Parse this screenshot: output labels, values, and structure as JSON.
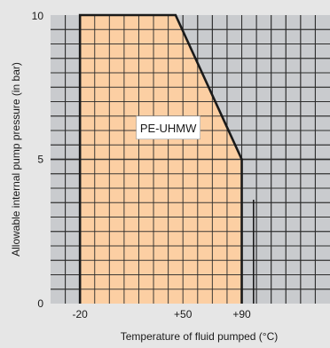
{
  "chart_data": {
    "type": "area",
    "title": "",
    "xlabel": "Temperature of fluid pumped (°C)",
    "ylabel": "Allowable internal pump pressure (in bar)",
    "xlim": [
      -40,
      150
    ],
    "ylim": [
      0,
      10
    ],
    "x_tick_values": [
      -20,
      50,
      90
    ],
    "x_tick_labels": [
      "-20",
      "+50",
      "+90"
    ],
    "y_tick_values": [
      0,
      5,
      10
    ],
    "y_tick_labels": [
      "0",
      "5",
      "10"
    ],
    "grid": true,
    "series": [
      {
        "name": "PE-UHMW",
        "points": [
          {
            "x": -20,
            "y": 0
          },
          {
            "x": -20,
            "y": 10
          },
          {
            "x": 45,
            "y": 10
          },
          {
            "x": 90,
            "y": 5
          },
          {
            "x": 90,
            "y": 0
          }
        ]
      }
    ],
    "region_label": "PE-UHMW",
    "colors": {
      "background": "#e6e6e6",
      "plot_background": "#c9cbce",
      "grid": "#2a2a2a",
      "region_fill": "#fccfa3",
      "boundary": "#1a1a1a",
      "label_box": "#ffffff"
    }
  }
}
